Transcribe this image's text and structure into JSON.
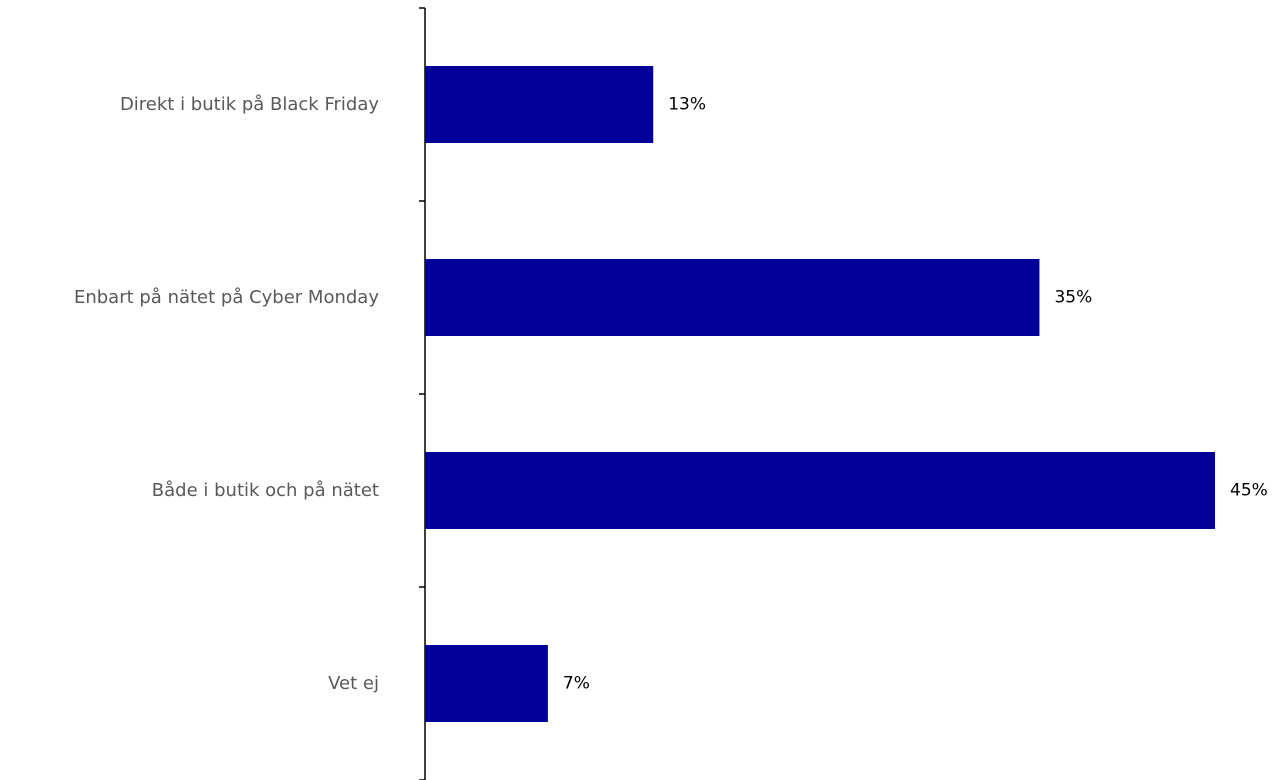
{
  "chart_data": {
    "type": "bar",
    "orientation": "horizontal",
    "title": "",
    "xlabel": "",
    "ylabel": "",
    "categories": [
      "Direkt i butik på Black Friday",
      "Enbart på nätet på Cyber Monday",
      "Både i butik och på nätet",
      "Vet ej"
    ],
    "values": [
      13,
      35,
      45,
      7
    ],
    "value_labels": [
      "13%",
      "35%",
      "45%",
      "7%"
    ],
    "unit": "%",
    "xlim": [
      0,
      45
    ],
    "grid": false,
    "legend": "none",
    "colors": {
      "bar": "#000099",
      "category_text": "#595959",
      "value_text": "#000000",
      "axis": "#000000"
    }
  }
}
